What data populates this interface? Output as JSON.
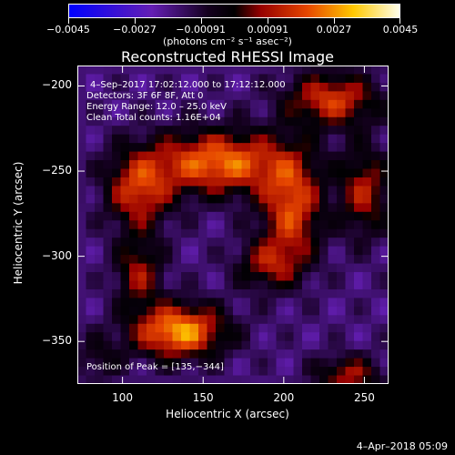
{
  "chart_data": {
    "type": "heatmap",
    "title": "Reconstructed RHESSI Image",
    "xlabel": "Heliocentric X (arcsec)",
    "ylabel": "Heliocentric Y (arcsec)",
    "xlim": [
      72,
      265
    ],
    "ylim": [
      -375,
      -188
    ],
    "xticks": [
      100,
      150,
      200,
      250
    ],
    "yticks": [
      -200,
      -250,
      -300,
      -350
    ],
    "xtick_labels": [
      "100",
      "150",
      "200",
      "250"
    ],
    "ytick_labels": [
      "−200",
      "−250",
      "−300",
      "−350"
    ],
    "colorbar": {
      "range": [
        -0.0045,
        0.0045
      ],
      "ticks": [
        -0.0045,
        -0.0027,
        -0.00091,
        0.00091,
        0.0027,
        0.0045
      ],
      "tick_labels": [
        "−0.0045",
        "−0.0027",
        "−0.00091",
        "0.00091",
        "0.0027",
        "0.0045"
      ],
      "unit_label": "(photons cm⁻² s⁻¹ asec⁻²)"
    },
    "annotations": {
      "time_range": "4–Sep–2017 17:02:12.000 to 17:12:12.000",
      "detectors": "Detectors: 3F 6F 8F, Att 0",
      "energy": "Energy Range: 12.0 – 25.0 keV",
      "clean": "Clean    Total counts: 1.16E+04",
      "peak": "Position of Peak = [135,−344]"
    },
    "sources": [
      {
        "x": 135,
        "y": -344,
        "amp": 0.0045,
        "sx": 20,
        "sy": 11
      },
      {
        "x": 110,
        "y": -262,
        "amp": 0.003,
        "sx": 14,
        "sy": 16
      },
      {
        "x": 160,
        "y": -245,
        "amp": 0.004,
        "sx": 30,
        "sy": 13
      },
      {
        "x": 205,
        "y": -272,
        "amp": 0.0034,
        "sx": 13,
        "sy": 22
      },
      {
        "x": 190,
        "y": -305,
        "amp": 0.0022,
        "sx": 14,
        "sy": 10
      },
      {
        "x": 110,
        "y": -310,
        "amp": 0.0024,
        "sx": 10,
        "sy": 14
      },
      {
        "x": 230,
        "y": -208,
        "amp": 0.0032,
        "sx": 20,
        "sy": 11
      },
      {
        "x": 250,
        "y": -262,
        "amp": 0.0026,
        "sx": 11,
        "sy": 18
      },
      {
        "x": 240,
        "y": -370,
        "amp": 0.0025,
        "sx": 14,
        "sy": 8
      },
      {
        "x": 85,
        "y": -360,
        "amp": 0.0012,
        "sx": 10,
        "sy": 10
      }
    ],
    "background": -0.0016
  },
  "footer": {
    "timestamp": "4–Apr–2018 05:09"
  }
}
